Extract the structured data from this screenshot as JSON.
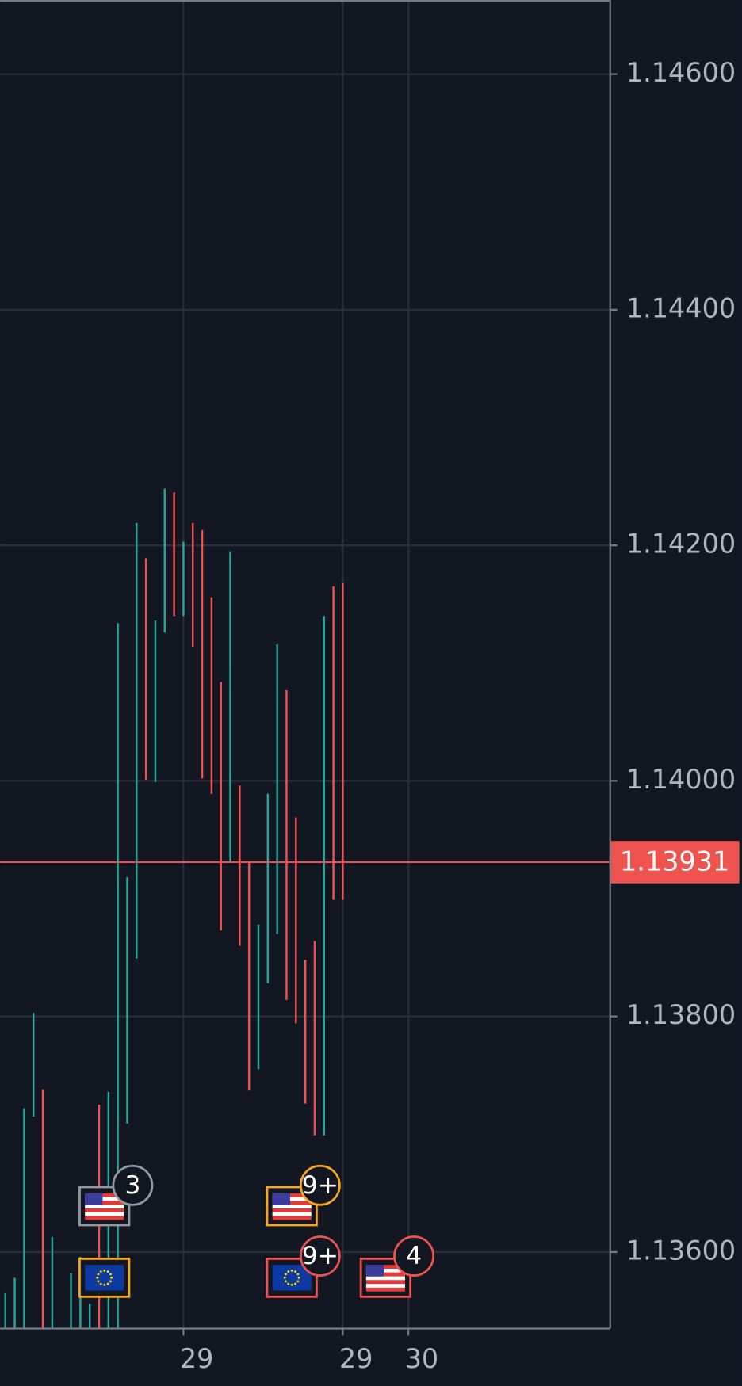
{
  "chart_data": {
    "type": "candlestick",
    "categories": [
      null,
      null,
      null,
      null,
      null,
      null,
      null,
      null,
      null,
      null,
      null,
      null,
      null,
      null,
      null,
      null,
      null,
      null,
      null,
      null,
      null,
      null,
      null,
      null,
      null,
      null,
      null,
      null,
      null,
      null,
      null,
      null,
      null,
      null,
      null,
      null,
      null
    ],
    "low": [
      1.13535,
      1.13535,
      1.13535,
      1.13715,
      1.13535,
      1.13535,
      null,
      1.13535,
      1.13535,
      1.13535,
      1.13535,
      1.13535,
      1.13535,
      1.13709,
      1.13849,
      1.14001,
      1.13999,
      1.14126,
      1.1414,
      1.1414,
      1.14114,
      1.14002,
      1.13989,
      1.13873,
      1.13931,
      1.1386,
      1.13737,
      1.13755,
      1.13828,
      1.1387,
      1.13814,
      1.13794,
      1.13726,
      1.13699,
      1.13699,
      1.13899,
      1.13899
    ],
    "high": [
      1.13565,
      1.13578,
      1.13722,
      1.13803,
      1.13738,
      1.13613,
      null,
      1.13582,
      1.13596,
      1.13556,
      1.13725,
      1.13736,
      1.14134,
      1.13918,
      1.14219,
      1.14189,
      1.14136,
      1.14248,
      1.14245,
      1.14203,
      1.14219,
      1.14213,
      1.14156,
      1.14084,
      1.14195,
      1.13996,
      1.13931,
      1.13878,
      1.13989,
      1.14116,
      1.14077,
      1.13969,
      1.13848,
      1.13864,
      1.1414,
      1.14165,
      1.14168
    ],
    "colors": [
      "#26a69a",
      "#26a69a",
      "#26a69a",
      "#26a69a",
      "#ef5350",
      "#26a69a",
      null,
      "#26a69a",
      "#26a69a",
      "#26a69a",
      "#ef5350",
      "#26a69a",
      "#26a69a",
      "#26a69a",
      "#26a69a",
      "#ef5350",
      "#26a69a",
      "#26a69a",
      "#ef5350",
      "#26a69a",
      "#ef5350",
      "#ef5350",
      "#ef5350",
      "#ef5350",
      "#26a69a",
      "#ef5350",
      "#ef5350",
      "#26a69a",
      "#26a69a",
      "#26a69a",
      "#ef5350",
      "#ef5350",
      "#ef5350",
      "#ef5350",
      "#26a69a",
      "#ef5350",
      "#ef5350"
    ],
    "ylim": [
      1.13535,
      1.14663
    ],
    "yticks": [
      {
        "value": 1.136,
        "label": "1.13600"
      },
      {
        "value": 1.138,
        "label": "1.13800"
      },
      {
        "value": 1.14,
        "label": "1.14000"
      },
      {
        "value": 1.142,
        "label": "1.14200"
      },
      {
        "value": 1.144,
        "label": "1.14400"
      },
      {
        "value": 1.146,
        "label": "1.14600"
      }
    ],
    "xticks": [
      {
        "value": 19,
        "label": "29"
      },
      {
        "value": 36,
        "label": "29"
      },
      {
        "value": 43,
        "label": "30"
      }
    ],
    "last_price": 1.13931,
    "last_price_color": "#ef5350",
    "event_badges": [
      "3",
      "9+",
      "9+",
      "4"
    ],
    "grid": true
  }
}
